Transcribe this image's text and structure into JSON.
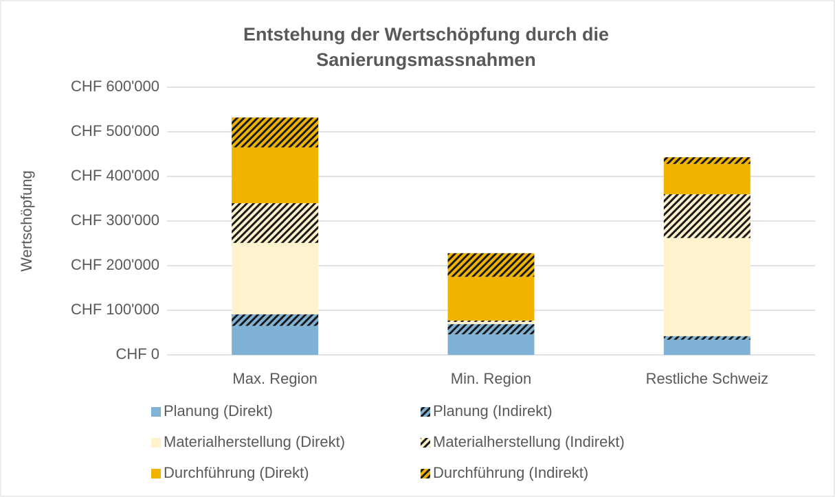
{
  "chart_data": {
    "type": "stacked_bar",
    "title": [
      "Entstehung der Wertschöpfung durch die",
      "Sanierungsmassnahmen"
    ],
    "y_label": "Wertschöpfung",
    "categories": [
      "Max. Region",
      "Min. Region",
      "Restliche Schweiz"
    ],
    "series": [
      {
        "name": "Planung (Direkt)",
        "color": "#7fb2d5",
        "hatch": false,
        "values": [
          65000,
          46000,
          34000
        ]
      },
      {
        "name": "Planung (Indirekt)",
        "color": "#7fb2d5",
        "hatch": true,
        "values": [
          26000,
          23000,
          8000
        ]
      },
      {
        "name": "Materialherstellung (Direkt)",
        "color": "#fff2cc",
        "hatch": false,
        "values": [
          160000,
          5000,
          220000
        ]
      },
      {
        "name": "Materialherstellung (Indirekt)",
        "color": "#fff2cc",
        "hatch": true,
        "values": [
          89000,
          3000,
          98000
        ]
      },
      {
        "name": "Durchführung (Direkt)",
        "color": "#f0b400",
        "hatch": false,
        "values": [
          125000,
          98000,
          68000
        ]
      },
      {
        "name": "Durchführung (Indirekt)",
        "color": "#f0b400",
        "hatch": true,
        "values": [
          67000,
          53000,
          15000
        ]
      }
    ],
    "ylim": [
      0,
      600000
    ],
    "yticks": [
      {
        "value": 0,
        "label": "CHF 0"
      },
      {
        "value": 100000,
        "label": "CHF 100'000"
      },
      {
        "value": 200000,
        "label": "CHF 200'000"
      },
      {
        "value": 300000,
        "label": "CHF 300'000"
      },
      {
        "value": 400000,
        "label": "CHF 400'000"
      },
      {
        "value": 500000,
        "label": "CHF 500'000"
      },
      {
        "value": 600000,
        "label": "CHF 600'000"
      }
    ],
    "grid": true,
    "legend": "bottom"
  }
}
